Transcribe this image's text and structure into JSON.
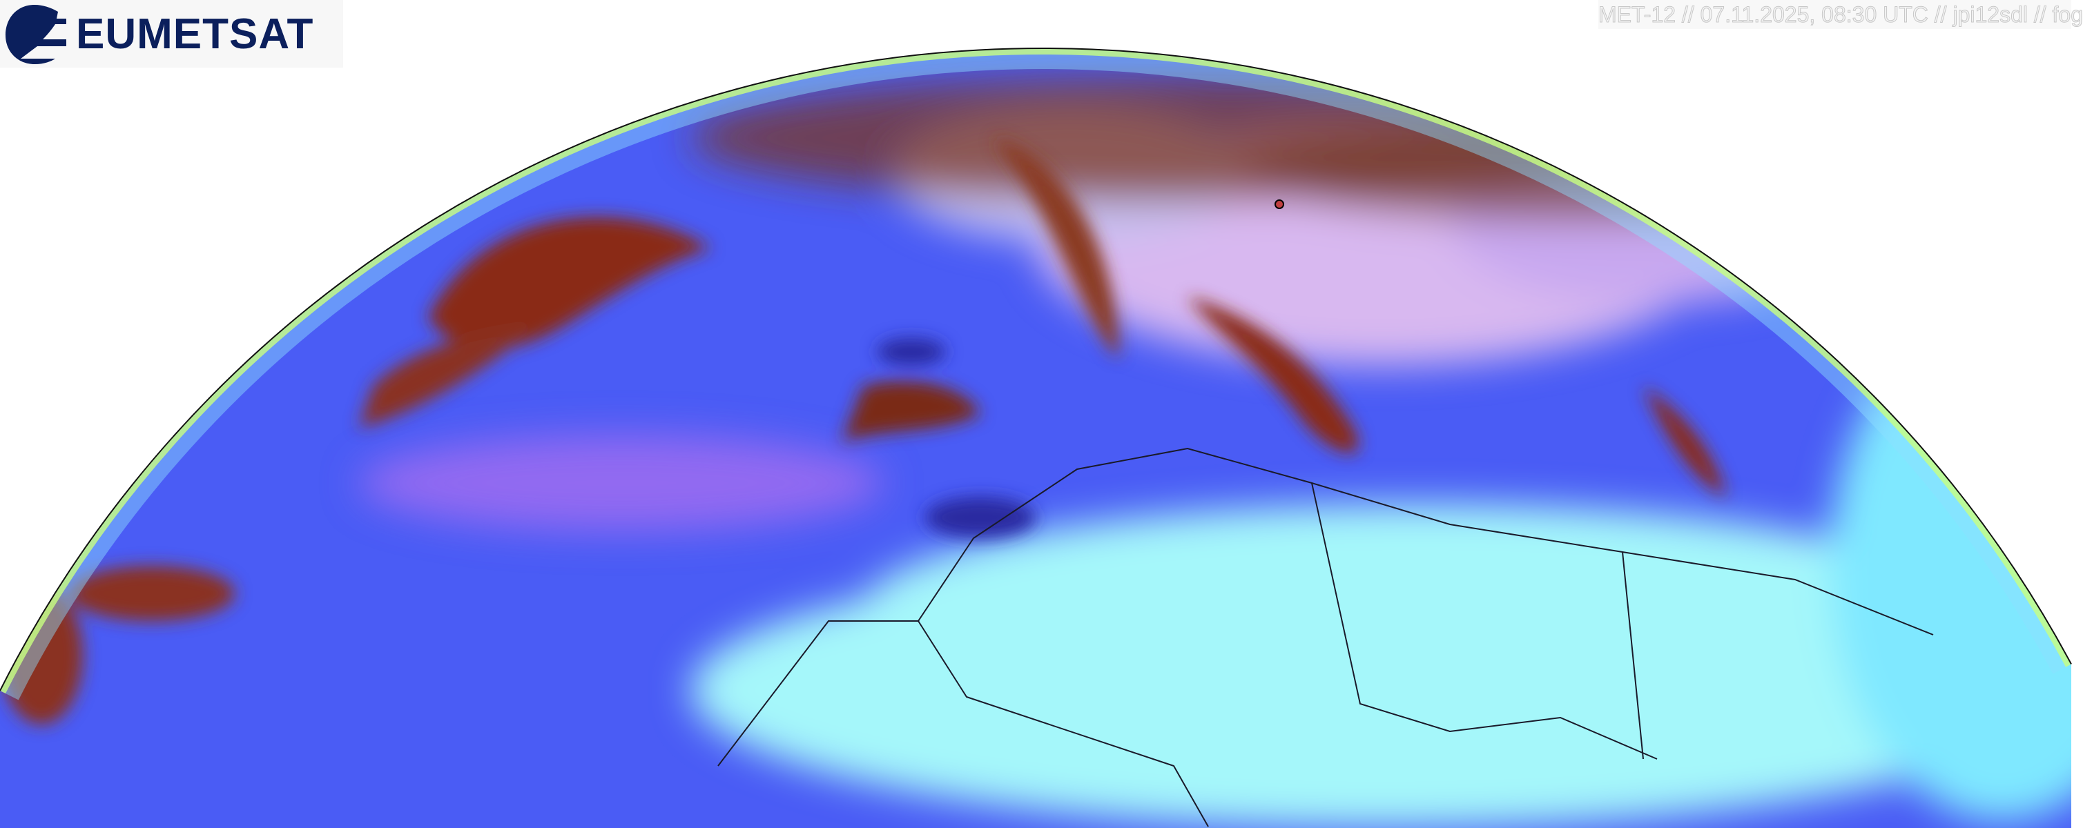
{
  "logo": {
    "text": "EUMETSAT",
    "color": "#0b1f5c"
  },
  "caption": "MET-12 // 07.11.2025, 08:30 UTC // jpi12sdl // fog",
  "image": {
    "subject": "satellite-earth-disk",
    "colors": {
      "ocean": "#4a5cf5",
      "desert": "#9ff6f8",
      "cloud_low": "#8a2a1a",
      "cloud_mid": "#d8a0ff",
      "land_edge": "#b8ff70"
    }
  }
}
